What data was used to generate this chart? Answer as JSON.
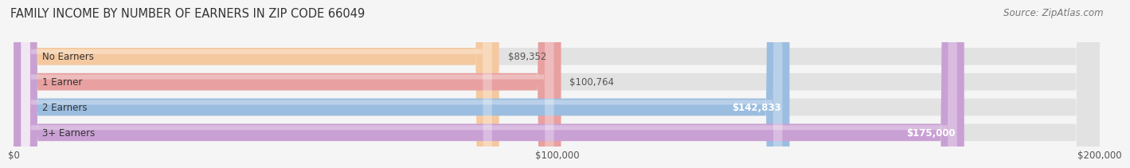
{
  "title": "FAMILY INCOME BY NUMBER OF EARNERS IN ZIP CODE 66049",
  "source": "Source: ZipAtlas.com",
  "categories": [
    "No Earners",
    "1 Earner",
    "2 Earners",
    "3+ Earners"
  ],
  "values": [
    89352,
    100764,
    142833,
    175000
  ],
  "bar_colors": [
    "#F5C9A0",
    "#E8A0A0",
    "#9BBDE0",
    "#C9A0D4"
  ],
  "value_labels": [
    "$89,352",
    "$100,764",
    "$142,833",
    "$175,000"
  ],
  "value_label_inside": [
    false,
    false,
    true,
    true
  ],
  "xlim": [
    0,
    200000
  ],
  "xtick_values": [
    0,
    100000,
    200000
  ],
  "xtick_labels": [
    "$0",
    "$100,000",
    "$200,000"
  ],
  "bg_color": "#f5f5f5",
  "bar_bg_color": "#e8e8e8",
  "title_fontsize": 10.5,
  "source_fontsize": 8.5,
  "label_fontsize": 8.5,
  "value_fontsize": 8.5,
  "cat_fontsize": 8.5,
  "bar_height": 0.68,
  "bar_gap": 1.0
}
